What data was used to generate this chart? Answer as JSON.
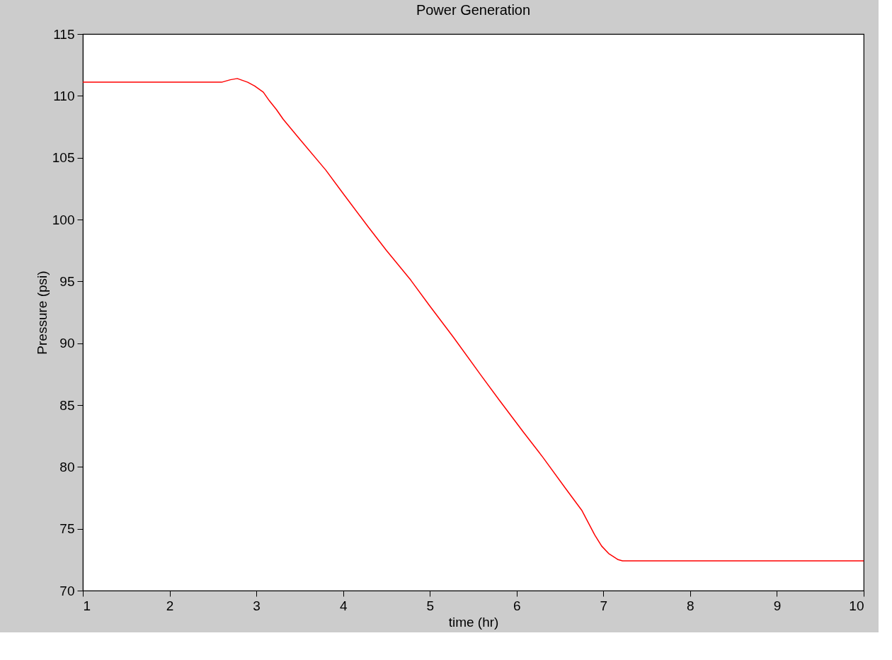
{
  "chart_data": {
    "type": "line",
    "title": "Power Generation",
    "xlabel": "time (hr)",
    "ylabel": "Pressure (psi)",
    "series": [
      {
        "color": "#ff0000",
        "x": [
          1,
          1.5,
          2,
          2.6,
          2.7,
          2.78,
          2.9,
          2.98,
          3.08,
          3.15,
          3.23,
          3.31,
          3.5,
          3.8,
          4.0,
          4.29,
          4.5,
          4.78,
          5.0,
          5.27,
          5.59,
          5.8,
          6.08,
          6.3,
          6.57,
          6.75,
          6.9,
          6.98,
          7.06,
          7.17,
          7.22,
          8,
          9,
          10
        ],
        "values": [
          111.1,
          111.1,
          111.1,
          111.1,
          111.3,
          111.4,
          111.1,
          110.8,
          110.3,
          109.6,
          108.9,
          108.1,
          106.5,
          104.0,
          102.1,
          99.4,
          97.5,
          95.1,
          93.0,
          90.5,
          87.4,
          85.4,
          82.8,
          80.8,
          78.2,
          76.5,
          74.5,
          73.6,
          73.0,
          72.5,
          72.4,
          72.4,
          72.4,
          72.4
        ]
      }
    ],
    "xlim": [
      1,
      10
    ],
    "xticks": [
      1,
      2,
      3,
      4,
      5,
      6,
      7,
      8,
      9,
      10
    ],
    "ylim": [
      70,
      115
    ],
    "yticks": [
      70,
      75,
      80,
      85,
      90,
      95,
      100,
      105,
      110,
      115
    ],
    "grid": false,
    "line_style": "solid",
    "marker": "none"
  }
}
